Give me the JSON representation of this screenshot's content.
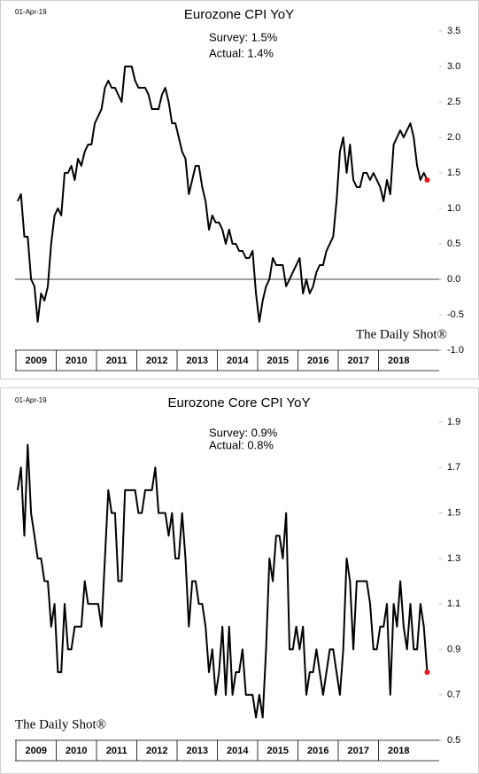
{
  "chart_data": [
    {
      "type": "line",
      "title": "Eurozone CPI YoY",
      "date_label": "01-Apr-19",
      "annotations": [
        "Survey: 1.5%",
        "Actual:  1.4%"
      ],
      "watermark": "The Daily Shot®",
      "watermark_corner": "lower right",
      "year_labels": [
        "2009",
        "2010",
        "2011",
        "2012",
        "2013",
        "2014",
        "2015",
        "2016",
        "2017",
        "2018"
      ],
      "color": "#000000",
      "last_point_color": "#e8141c",
      "zero_line": true,
      "ylim": [
        -1.0,
        3.5
      ],
      "yticks": [
        3.5,
        {
          "value": 3,
          "label": "3.0"
        },
        2.5,
        {
          "value": 2,
          "label": "2.0"
        },
        1.5,
        {
          "value": 1,
          "label": "1.0"
        },
        0.5,
        {
          "value": 0,
          "label": "0.0"
        },
        -0.5,
        {
          "value": -1,
          "label": "-1.0"
        }
      ],
      "values": [
        1.1,
        1.2,
        0.6,
        0.6,
        0.0,
        -0.1,
        -0.6,
        -0.2,
        -0.3,
        -0.1,
        0.5,
        0.9,
        1.0,
        0.9,
        1.5,
        1.5,
        1.6,
        1.4,
        1.7,
        1.6,
        1.8,
        1.9,
        1.9,
        2.2,
        2.3,
        2.4,
        2.7,
        2.8,
        2.7,
        2.7,
        2.6,
        2.5,
        3.0,
        3.0,
        3.0,
        2.8,
        2.7,
        2.7,
        2.7,
        2.6,
        2.4,
        2.4,
        2.4,
        2.6,
        2.7,
        2.5,
        2.2,
        2.2,
        2.0,
        1.8,
        1.7,
        1.2,
        1.4,
        1.6,
        1.6,
        1.3,
        1.1,
        0.7,
        0.9,
        0.8,
        0.8,
        0.7,
        0.5,
        0.7,
        0.5,
        0.5,
        0.4,
        0.4,
        0.3,
        0.3,
        0.4,
        -0.2,
        -0.6,
        -0.3,
        -0.1,
        0.0,
        0.3,
        0.2,
        0.2,
        0.2,
        -0.1,
        0.0,
        0.1,
        0.2,
        0.3,
        -0.2,
        0.0,
        -0.2,
        -0.1,
        0.1,
        0.2,
        0.2,
        0.4,
        0.5,
        0.6,
        1.1,
        1.8,
        2.0,
        1.5,
        1.9,
        1.4,
        1.3,
        1.3,
        1.5,
        1.5,
        1.4,
        1.5,
        1.4,
        1.3,
        1.1,
        1.4,
        1.2,
        1.9,
        2.0,
        2.1,
        2.0,
        2.1,
        2.2,
        2.0,
        1.6,
        1.4,
        1.5,
        1.4
      ]
    },
    {
      "type": "line",
      "title": "Eurozone Core CPI YoY",
      "date_label": "01-Apr-19",
      "annotations": [
        "Survey: 0.9%",
        "Actual:  0.8%"
      ],
      "watermark": "The Daily Shot®",
      "watermark_corner": "lower left",
      "year_labels": [
        "2009",
        "2010",
        "2011",
        "2012",
        "2013",
        "2014",
        "2015",
        "2016",
        "2017",
        "2018"
      ],
      "color": "#000000",
      "last_point_color": "#e8141c",
      "zero_line": false,
      "ylim": [
        0.5,
        1.9
      ],
      "yticks": [
        1.9,
        1.7,
        1.5,
        1.3,
        1.1,
        0.9,
        0.7,
        0.5
      ],
      "values": [
        1.6,
        1.7,
        1.4,
        1.8,
        1.5,
        1.4,
        1.3,
        1.3,
        1.2,
        1.2,
        1.0,
        1.1,
        0.8,
        0.8,
        1.1,
        0.9,
        0.9,
        1.0,
        1.0,
        1.0,
        1.2,
        1.1,
        1.1,
        1.1,
        1.1,
        1.0,
        1.3,
        1.6,
        1.5,
        1.5,
        1.2,
        1.2,
        1.6,
        1.6,
        1.6,
        1.6,
        1.5,
        1.5,
        1.6,
        1.6,
        1.6,
        1.7,
        1.5,
        1.5,
        1.5,
        1.4,
        1.5,
        1.3,
        1.3,
        1.5,
        1.3,
        1.0,
        1.2,
        1.2,
        1.1,
        1.1,
        1.0,
        0.8,
        0.9,
        0.7,
        0.8,
        1.0,
        0.7,
        1.0,
        0.7,
        0.8,
        0.8,
        0.9,
        0.7,
        0.7,
        0.7,
        0.6,
        0.7,
        0.6,
        0.9,
        1.3,
        1.2,
        1.4,
        1.4,
        1.3,
        1.5,
        0.9,
        0.9,
        1.0,
        0.9,
        1.0,
        0.7,
        0.8,
        0.8,
        0.9,
        0.8,
        0.7,
        0.8,
        0.9,
        0.9,
        0.8,
        0.7,
        0.9,
        1.3,
        1.2,
        0.9,
        1.2,
        1.2,
        1.2,
        1.2,
        1.1,
        0.9,
        0.9,
        1.0,
        1.0,
        1.1,
        0.7,
        1.1,
        1.0,
        1.2,
        1.0,
        0.9,
        1.1,
        0.9,
        0.9,
        1.1,
        1.0,
        0.8
      ]
    }
  ]
}
